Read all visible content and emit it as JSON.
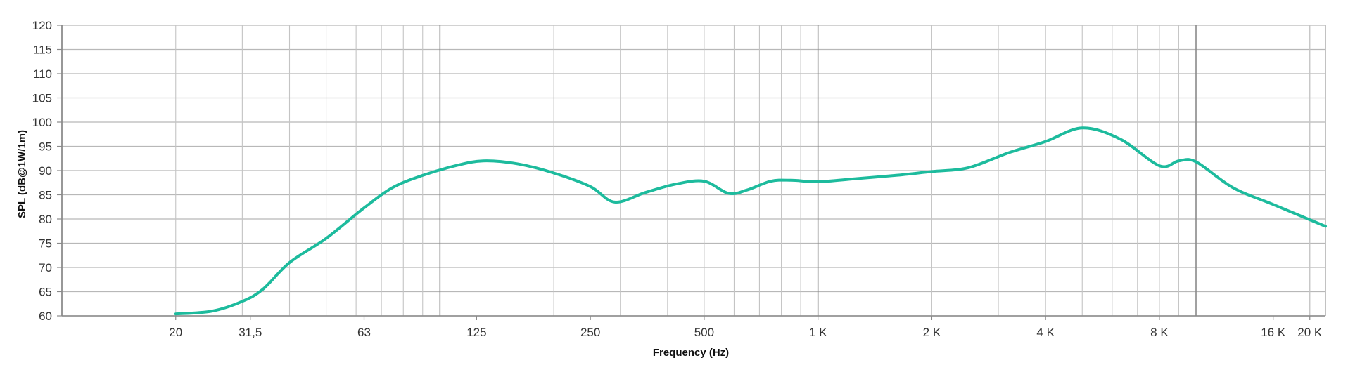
{
  "chart_data": {
    "type": "line",
    "title": "",
    "xlabel": "Frequency (Hz)",
    "ylabel": "SPL (dB@1W/1m)",
    "x_scale": "log",
    "xlim": [
      10,
      22000
    ],
    "ylim": [
      60,
      120
    ],
    "y_ticks": [
      60,
      65,
      70,
      75,
      80,
      85,
      90,
      95,
      100,
      105,
      110,
      115,
      120
    ],
    "x_tick_labels": [
      {
        "value": 20,
        "label": "20"
      },
      {
        "value": 31.5,
        "label": "31,5"
      },
      {
        "value": 63,
        "label": "63"
      },
      {
        "value": 125,
        "label": "125"
      },
      {
        "value": 250,
        "label": "250"
      },
      {
        "value": 500,
        "label": "500"
      },
      {
        "value": 1000,
        "label": "1 K"
      },
      {
        "value": 2000,
        "label": "2 K"
      },
      {
        "value": 4000,
        "label": "4 K"
      },
      {
        "value": 8000,
        "label": "8 K"
      },
      {
        "value": 16000,
        "label": "16 K"
      },
      {
        "value": 20000,
        "label": "20 K"
      }
    ],
    "grid": true,
    "legend": "none",
    "series": [
      {
        "color": "#1dbb9d",
        "x": [
          20,
          25,
          30,
          34,
          40,
          50,
          63,
          75,
          90,
          110,
          130,
          160,
          200,
          250,
          290,
          350,
          420,
          500,
          580,
          650,
          750,
          850,
          1000,
          1250,
          1600,
          2000,
          2500,
          3200,
          4000,
          5000,
          6300,
          8000,
          9000,
          10000,
          12500,
          16000,
          22000
        ],
        "y": [
          60.4,
          61,
          63,
          65.5,
          71,
          76,
          82.3,
          86.5,
          89,
          91,
          92,
          91.4,
          89.5,
          86.7,
          83.5,
          85.5,
          87.2,
          87.8,
          85.3,
          86,
          87.8,
          88,
          87.7,
          88.3,
          89,
          89.8,
          90.6,
          93.7,
          96,
          98.8,
          96.5,
          91,
          92,
          91.8,
          86.5,
          83,
          78.5
        ]
      }
    ]
  }
}
